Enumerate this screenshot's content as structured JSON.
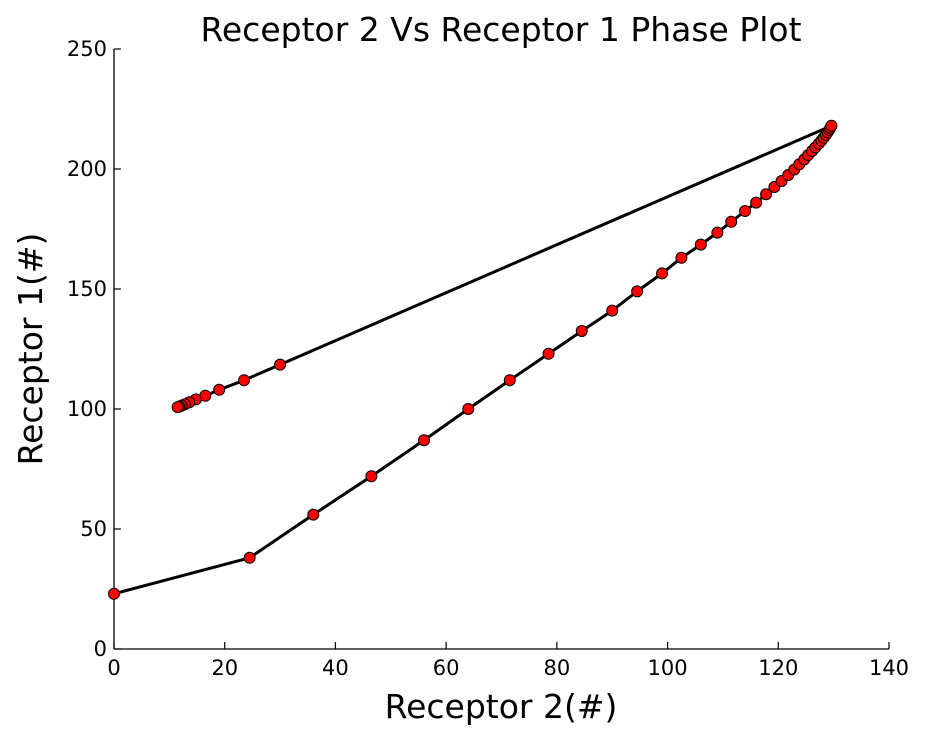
{
  "chart_data": {
    "type": "line",
    "title": "Receptor 2 Vs Receptor 1 Phase Plot",
    "xlabel": "Receptor 2(#)",
    "ylabel": "Receptor 1(#)",
    "xlim": [
      0,
      140
    ],
    "ylim": [
      0,
      250
    ],
    "xticks": [
      0,
      20,
      40,
      60,
      80,
      100,
      120,
      140
    ],
    "yticks": [
      0,
      50,
      100,
      150,
      200,
      250
    ],
    "xtick_labels": [
      "0",
      "20",
      "40",
      "60",
      "80",
      "100",
      "120",
      "140"
    ],
    "ytick_labels": [
      "0",
      "50",
      "100",
      "150",
      "200",
      "250"
    ],
    "grid": false,
    "line_color": "#000000",
    "marker_color": "#ff0000",
    "marker_edge_color": "#000000",
    "series": [
      {
        "points": [
          [
            0,
            23
          ],
          [
            24.5,
            38
          ],
          [
            36,
            56
          ],
          [
            46.5,
            72
          ],
          [
            56,
            87
          ],
          [
            64,
            100
          ],
          [
            71.5,
            112
          ],
          [
            78.5,
            123
          ],
          [
            84.5,
            132.5
          ],
          [
            90,
            141
          ],
          [
            94.5,
            149
          ],
          [
            99,
            156.5
          ],
          [
            102.5,
            163
          ],
          [
            106,
            168.5
          ],
          [
            109,
            173.5
          ],
          [
            111.5,
            178
          ],
          [
            114,
            182.5
          ],
          [
            116,
            186
          ],
          [
            117.8,
            189.5
          ],
          [
            119.3,
            192.5
          ],
          [
            120.6,
            195
          ],
          [
            121.8,
            197.5
          ],
          [
            122.9,
            199.8
          ],
          [
            123.8,
            202
          ],
          [
            124.7,
            204
          ],
          [
            125.4,
            205.8
          ],
          [
            126.1,
            207.5
          ],
          [
            126.7,
            209
          ],
          [
            127.3,
            210.5
          ],
          [
            127.8,
            211.8
          ],
          [
            128.2,
            213
          ],
          [
            128.6,
            214.2
          ],
          [
            128.9,
            215.3
          ],
          [
            129.2,
            216.3
          ],
          [
            129.4,
            217.2
          ],
          [
            129.6,
            218
          ],
          [
            30,
            118.5
          ],
          [
            23.5,
            112
          ],
          [
            19,
            108
          ],
          [
            16.5,
            105.5
          ],
          [
            14.8,
            104
          ],
          [
            13.6,
            102.8
          ],
          [
            12.8,
            102
          ],
          [
            12.2,
            101.4
          ],
          [
            11.8,
            101
          ],
          [
            11.5,
            100.8
          ]
        ]
      }
    ]
  }
}
